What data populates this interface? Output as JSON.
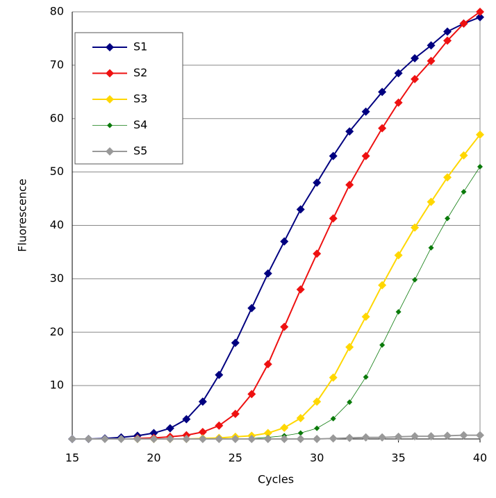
{
  "chart_data": {
    "type": "line",
    "x_label": "Cycles",
    "y_label": "Fluorescence",
    "x": [
      15,
      16,
      17,
      18,
      19,
      20,
      21,
      22,
      23,
      24,
      25,
      26,
      27,
      28,
      29,
      30,
      31,
      32,
      33,
      34,
      35,
      36,
      37,
      38,
      39,
      40
    ],
    "xlim": [
      15,
      40
    ],
    "xticks": [
      15,
      20,
      25,
      30,
      35,
      40
    ],
    "ylim": [
      0,
      80
    ],
    "yticks": [
      10,
      20,
      30,
      40,
      50,
      60,
      70,
      80
    ],
    "grid": true,
    "legend": "top-left",
    "series": [
      {
        "name": "S1",
        "color": "#000080",
        "line_width": 2,
        "marker_size": 6,
        "values": [
          0,
          0,
          0.1,
          0.3,
          0.6,
          1.1,
          2,
          3.7,
          7,
          12,
          18,
          24.5,
          31,
          37,
          43,
          48,
          53,
          57.6,
          61.3,
          65,
          68.5,
          71.3,
          73.7,
          76.3,
          77.8,
          79
        ]
      },
      {
        "name": "S2",
        "color": "#ee1111",
        "line_width": 2,
        "marker_size": 6,
        "values": [
          null,
          null,
          null,
          null,
          0.1,
          0.2,
          0.4,
          0.7,
          1.3,
          2.5,
          4.7,
          8.4,
          14,
          21,
          28,
          34.7,
          41.3,
          47.6,
          53,
          58.2,
          63,
          67.4,
          70.8,
          74.6,
          77.8,
          80
        ]
      },
      {
        "name": "S3",
        "color": "#ffd700",
        "line_width": 2,
        "marker_size": 6,
        "values": [
          null,
          null,
          null,
          null,
          0,
          0,
          0,
          0,
          0.1,
          0.2,
          0.4,
          0.6,
          1.1,
          2.1,
          3.9,
          7,
          11.5,
          17.2,
          22.9,
          28.8,
          34.4,
          39.6,
          44.4,
          49,
          53.1,
          57
        ]
      },
      {
        "name": "S4",
        "color": "#0a7a0a",
        "line_width": 0.8,
        "marker_size": 4,
        "values": [
          null,
          null,
          null,
          null,
          0,
          0,
          0,
          0,
          0,
          0,
          0,
          0.1,
          0.3,
          0.6,
          1.1,
          2,
          3.8,
          6.9,
          11.6,
          17.6,
          23.8,
          29.8,
          35.8,
          41.3,
          46.3,
          51
        ]
      },
      {
        "name": "S5",
        "color": "#999999",
        "line_width": 2,
        "marker_size": 6,
        "values": [
          0,
          0,
          0,
          0,
          0,
          0,
          0,
          0,
          0,
          0,
          0,
          0,
          0,
          0,
          0,
          0,
          0.1,
          0.2,
          0.3,
          0.3,
          0.4,
          0.5,
          0.5,
          0.6,
          0.7,
          0.7
        ]
      }
    ]
  }
}
